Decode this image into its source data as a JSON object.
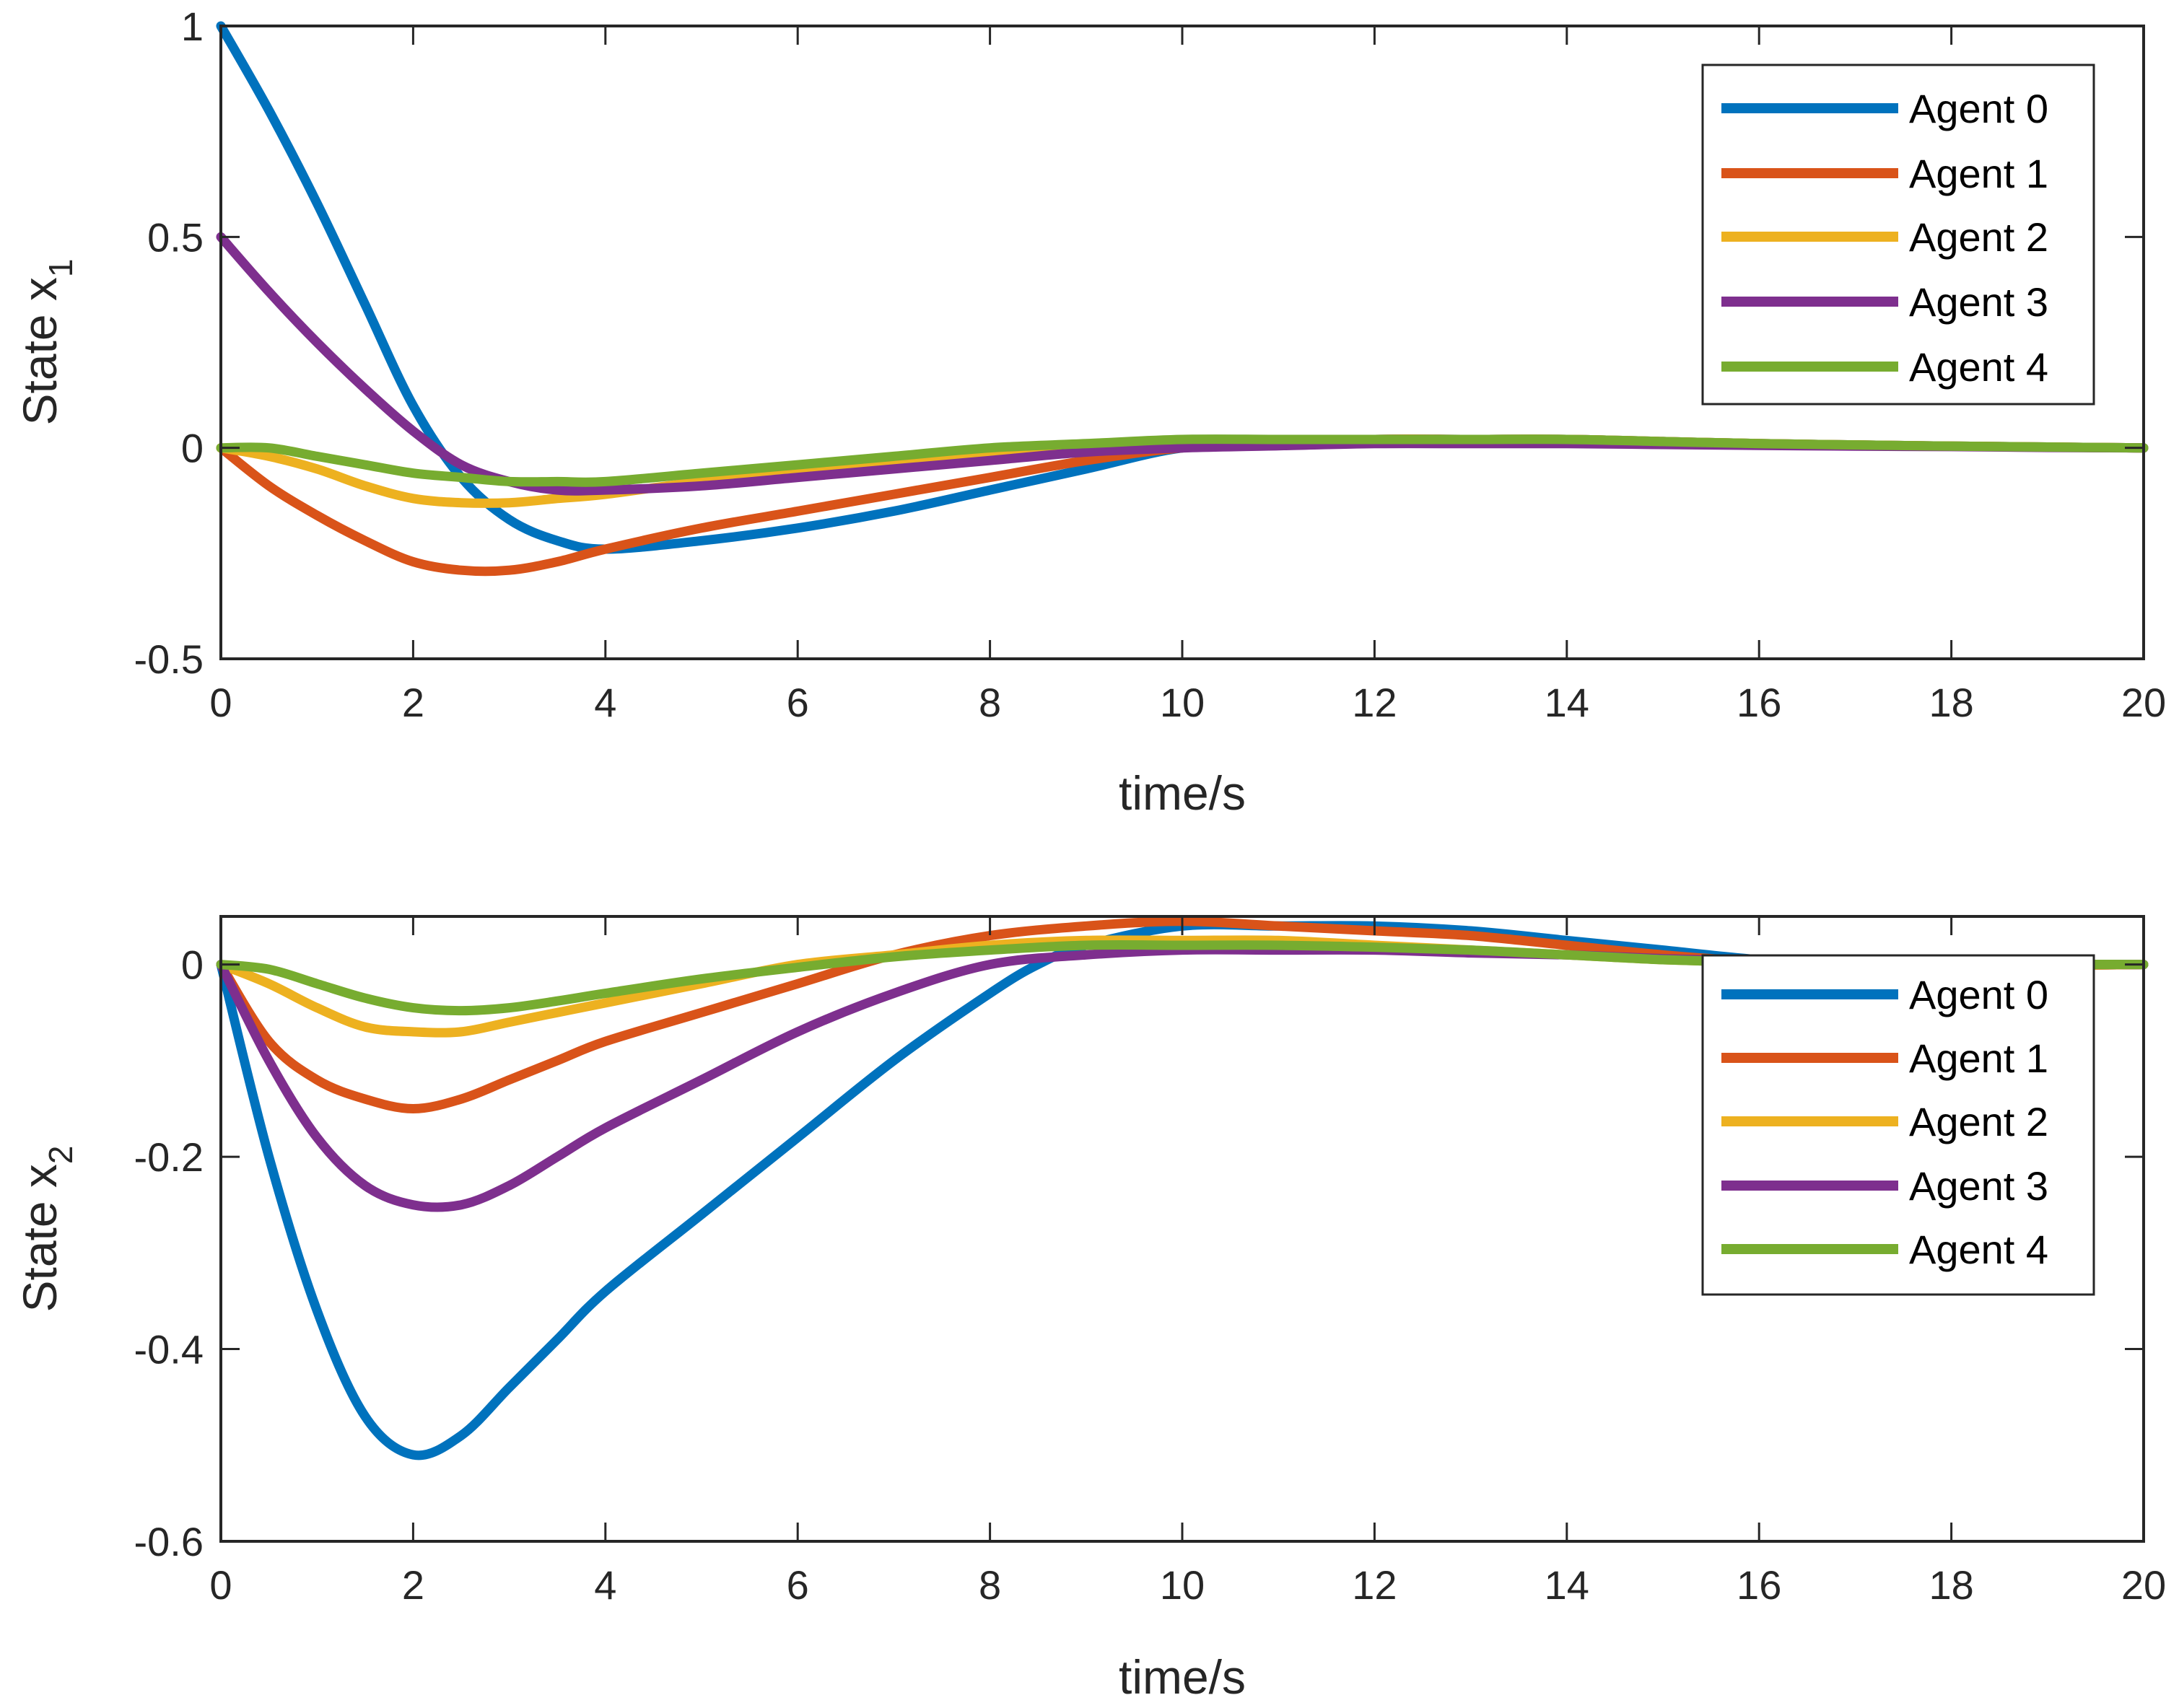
{
  "chart_data": [
    {
      "type": "line",
      "ylabel": "State x",
      "ylabel_sub": "1",
      "xlabel": "time/s",
      "xlim": [
        0,
        20
      ],
      "ylim": [
        -0.5,
        1
      ],
      "xticks": [
        0,
        2,
        4,
        6,
        8,
        10,
        12,
        14,
        16,
        18,
        20
      ],
      "yticks": [
        -0.5,
        0,
        0.5,
        1
      ],
      "legend_position": "top-right",
      "series": [
        {
          "name": "Agent 0",
          "color": "#0072BD",
          "x": [
            0,
            0.5,
            1,
            1.5,
            2,
            2.5,
            3,
            3.5,
            4,
            5,
            6,
            7,
            8,
            9,
            10,
            11,
            12,
            13,
            14,
            15,
            16,
            17,
            18,
            19,
            20
          ],
          "y": [
            1,
            0.8,
            0.58,
            0.34,
            0.1,
            -0.07,
            -0.17,
            -0.22,
            -0.24,
            -0.22,
            -0.19,
            -0.15,
            -0.1,
            -0.05,
            0,
            0.01,
            0.02,
            0.02,
            0.02,
            0.015,
            0.01,
            0.007,
            0.004,
            0.002,
            0
          ]
        },
        {
          "name": "Agent 1",
          "color": "#D95319",
          "x": [
            0,
            0.5,
            1,
            1.5,
            2,
            2.5,
            3,
            3.5,
            4,
            5,
            6,
            7,
            8,
            9,
            10,
            11,
            12,
            13,
            14,
            15,
            16,
            17,
            18,
            19,
            20
          ],
          "y": [
            0,
            -0.09,
            -0.16,
            -0.22,
            -0.27,
            -0.29,
            -0.29,
            -0.27,
            -0.24,
            -0.19,
            -0.15,
            -0.11,
            -0.07,
            -0.03,
            0,
            0.01,
            0.02,
            0.02,
            0.02,
            0.015,
            0.01,
            0.007,
            0.004,
            0.002,
            0
          ]
        },
        {
          "name": "Agent 2",
          "color": "#EDB120",
          "x": [
            0,
            0.5,
            1,
            1.5,
            2,
            2.5,
            3,
            3.5,
            4,
            5,
            6,
            7,
            8,
            9,
            10,
            11,
            12,
            13,
            14,
            15,
            16,
            17,
            18,
            19,
            20
          ],
          "y": [
            0,
            -0.02,
            -0.05,
            -0.09,
            -0.12,
            -0.13,
            -0.13,
            -0.12,
            -0.11,
            -0.08,
            -0.06,
            -0.04,
            -0.02,
            0,
            0.01,
            0.015,
            0.02,
            0.02,
            0.02,
            0.015,
            0.01,
            0.007,
            0.004,
            0.002,
            0
          ]
        },
        {
          "name": "Agent 3",
          "color": "#7E2F8E",
          "x": [
            0,
            0.5,
            1,
            1.5,
            2,
            2.5,
            3,
            3.5,
            4,
            5,
            6,
            7,
            8,
            9,
            10,
            11,
            12,
            13,
            14,
            15,
            16,
            17,
            18,
            19,
            20
          ],
          "y": [
            0.5,
            0.37,
            0.25,
            0.14,
            0.04,
            -0.04,
            -0.08,
            -0.1,
            -0.1,
            -0.09,
            -0.07,
            -0.05,
            -0.03,
            -0.01,
            0,
            0.005,
            0.01,
            0.01,
            0.01,
            0.008,
            0.006,
            0.004,
            0.003,
            0.001,
            0
          ]
        },
        {
          "name": "Agent 4",
          "color": "#77AC30",
          "x": [
            0,
            0.5,
            1,
            1.5,
            2,
            2.5,
            3,
            3.5,
            4,
            5,
            6,
            7,
            8,
            9,
            10,
            11,
            12,
            13,
            14,
            15,
            16,
            17,
            18,
            19,
            20
          ],
          "y": [
            0,
            0,
            -0.02,
            -0.04,
            -0.06,
            -0.07,
            -0.08,
            -0.08,
            -0.08,
            -0.06,
            -0.04,
            -0.02,
            0,
            0.01,
            0.02,
            0.02,
            0.02,
            0.02,
            0.02,
            0.015,
            0.01,
            0.007,
            0.004,
            0.002,
            0
          ]
        }
      ]
    },
    {
      "type": "line",
      "ylabel": "State x",
      "ylabel_sub": "2",
      "xlabel": "time/s",
      "xlim": [
        0,
        20
      ],
      "ylim": [
        -0.6,
        0.05
      ],
      "xticks": [
        0,
        2,
        4,
        6,
        8,
        10,
        12,
        14,
        16,
        18,
        20
      ],
      "yticks": [
        -0.6,
        -0.4,
        -0.2,
        0
      ],
      "legend_position": "top-right",
      "series": [
        {
          "name": "Agent 0",
          "color": "#0072BD",
          "x": [
            0,
            0.5,
            1,
            1.5,
            2,
            2.5,
            3,
            3.5,
            4,
            5,
            6,
            7,
            8,
            8.5,
            9,
            10,
            11,
            12,
            13,
            14,
            15,
            16,
            17,
            18,
            19,
            20
          ],
          "y": [
            0,
            -0.2,
            -0.36,
            -0.47,
            -0.51,
            -0.49,
            -0.44,
            -0.39,
            -0.34,
            -0.26,
            -0.18,
            -0.1,
            -0.03,
            0,
            0.02,
            0.04,
            0.04,
            0.04,
            0.035,
            0.025,
            0.015,
            0.005,
            0,
            -0.002,
            -0.001,
            0
          ]
        },
        {
          "name": "Agent 1",
          "color": "#D95319",
          "x": [
            0,
            0.5,
            1,
            1.5,
            2,
            2.5,
            3,
            3.5,
            4,
            5,
            6,
            7,
            8,
            9,
            10,
            11,
            12,
            13,
            14,
            15,
            16,
            17,
            18,
            19,
            20
          ],
          "y": [
            0,
            -0.08,
            -0.12,
            -0.14,
            -0.15,
            -0.14,
            -0.12,
            -0.1,
            -0.08,
            -0.05,
            -0.02,
            0.01,
            0.03,
            0.04,
            0.045,
            0.04,
            0.035,
            0.03,
            0.02,
            0.01,
            0.003,
            0,
            -0.002,
            -0.001,
            0
          ]
        },
        {
          "name": "Agent 2",
          "color": "#EDB120",
          "x": [
            0,
            0.5,
            1,
            1.5,
            2,
            2.5,
            3,
            3.5,
            4,
            5,
            6,
            7,
            8,
            9,
            10,
            11,
            12,
            13,
            14,
            15,
            16,
            17,
            18,
            19,
            20
          ],
          "y": [
            0,
            -0.02,
            -0.045,
            -0.065,
            -0.07,
            -0.07,
            -0.06,
            -0.05,
            -0.04,
            -0.02,
            0,
            0.01,
            0.02,
            0.025,
            0.025,
            0.025,
            0.02,
            0.015,
            0.01,
            0.005,
            0.002,
            0,
            -0.001,
            -0.001,
            0
          ]
        },
        {
          "name": "Agent 3",
          "color": "#7E2F8E",
          "x": [
            0,
            0.5,
            1,
            1.5,
            2,
            2.5,
            3,
            3.5,
            4,
            5,
            6,
            7,
            8,
            9,
            10,
            11,
            12,
            13,
            14,
            15,
            16,
            17,
            18,
            19,
            20
          ],
          "y": [
            0,
            -0.1,
            -0.18,
            -0.23,
            -0.25,
            -0.25,
            -0.23,
            -0.2,
            -0.17,
            -0.12,
            -0.07,
            -0.03,
            0,
            0.01,
            0.015,
            0.015,
            0.015,
            0.012,
            0.01,
            0.006,
            0.003,
            0.001,
            0,
            0,
            0
          ]
        },
        {
          "name": "Agent 4",
          "color": "#77AC30",
          "x": [
            0,
            0.5,
            1,
            1.5,
            2,
            2.5,
            3,
            3.5,
            4,
            5,
            6,
            7,
            8,
            9,
            10,
            11,
            12,
            13,
            14,
            15,
            16,
            17,
            18,
            19,
            20
          ],
          "y": [
            0,
            -0.005,
            -0.02,
            -0.035,
            -0.045,
            -0.048,
            -0.045,
            -0.038,
            -0.03,
            -0.015,
            -0.003,
            0.008,
            0.015,
            0.02,
            0.02,
            0.02,
            0.018,
            0.015,
            0.01,
            0.005,
            0.002,
            0,
            -0.001,
            0,
            0
          ]
        }
      ]
    }
  ]
}
